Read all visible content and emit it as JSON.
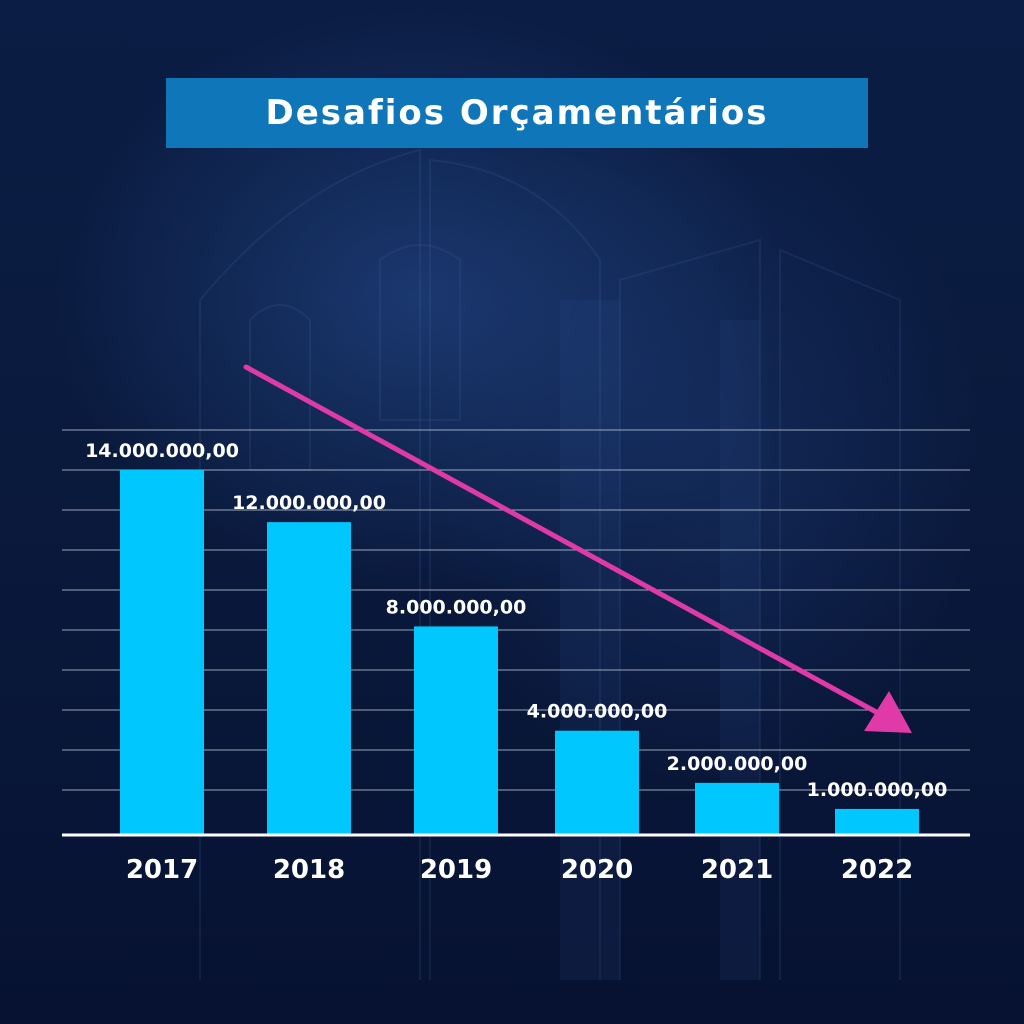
{
  "title": "Desafios Orçamentários",
  "colors": {
    "bar": "#00c8ff",
    "arrow": "#e03aa8",
    "grid": "#c8d4e8",
    "background": "#0a1a3c",
    "title_bg": "#0f76b9"
  },
  "chart_data": {
    "type": "bar",
    "title": "Desafios Orçamentários",
    "categories": [
      "2017",
      "2018",
      "2019",
      "2020",
      "2021",
      "2022"
    ],
    "values": [
      14000000,
      12000000,
      8000000,
      4000000,
      2000000,
      1000000
    ],
    "data_labels": [
      "14.000.000,00",
      "12.000.000,00",
      "8.000.000,00",
      "4.000.000,00",
      "2.000.000,00",
      "1.000.000,00"
    ],
    "xlabel": "",
    "ylabel": "",
    "ylim": [
      0,
      15000000
    ],
    "grid": true,
    "trend_arrow": "downward",
    "legend": "none"
  }
}
